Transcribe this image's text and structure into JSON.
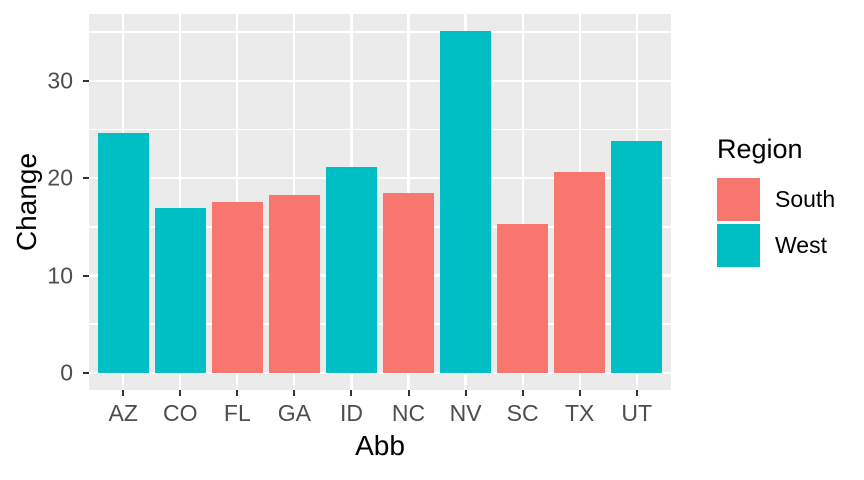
{
  "chart_data": {
    "type": "bar",
    "categories": [
      "AZ",
      "CO",
      "FL",
      "GA",
      "ID",
      "NC",
      "NV",
      "SC",
      "TX",
      "UT"
    ],
    "values": [
      24.6,
      16.9,
      17.6,
      18.3,
      21.1,
      18.5,
      35.1,
      15.3,
      20.6,
      23.8
    ],
    "groups": [
      "West",
      "West",
      "South",
      "South",
      "West",
      "South",
      "West",
      "South",
      "South",
      "West"
    ],
    "title": "",
    "xlabel": "Abb",
    "ylabel": "Change",
    "yticks": [
      0,
      10,
      20,
      30
    ],
    "minor_yticks": [
      5,
      15,
      25,
      35
    ],
    "panel_y_range": [
      -1.76,
      36.86
    ],
    "x_units_total": 10.2,
    "bar_width_units": 0.9,
    "grid": true,
    "colors": {
      "South": "#F8766D",
      "West": "#00BFC4"
    },
    "panel_background": "#EBEBEB",
    "gridline_color": "#FFFFFF",
    "tick_label_color": "#4D4D4D",
    "axis_title_color": "#000000",
    "legend": {
      "title": "Region",
      "position": "right",
      "entries": [
        {
          "label": "South",
          "color": "#F8766D"
        },
        {
          "label": "West",
          "color": "#00BFC4"
        }
      ]
    }
  }
}
